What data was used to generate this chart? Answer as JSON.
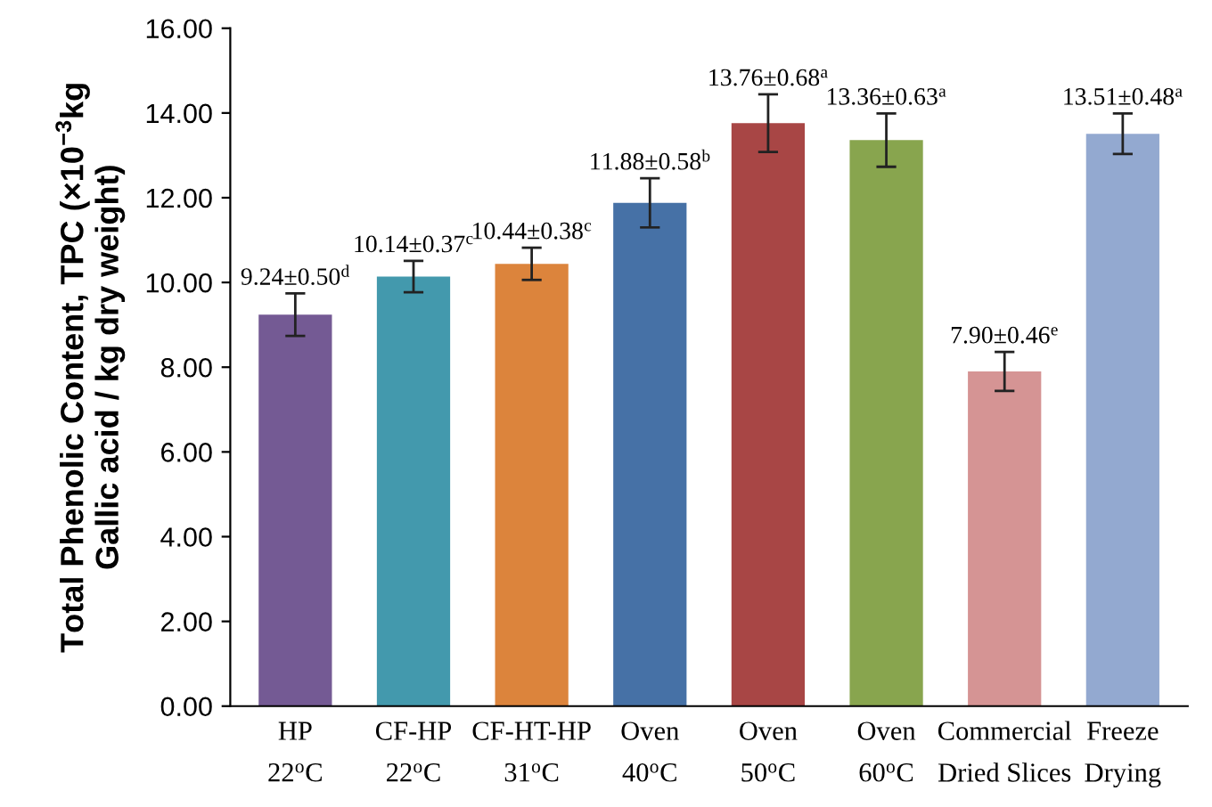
{
  "chart_data": {
    "type": "bar",
    "ylabel": "Total Phenolic Content, TPC (×10$^{−3}$kg\nGallic acid / kg dry weight)",
    "categories": [
      "HP\n22$^{o}$C",
      "CF-HP\n22$^{o}$C",
      "CF-HT-HP\n31$^{o}$C",
      "Oven\n40$^{o}$C",
      "Oven\n50$^{o}$C",
      "Oven\n60$^{o}$C",
      "Commercial\nDried Slices",
      "Freeze\nDrying"
    ],
    "values": [
      9.24,
      10.14,
      10.44,
      11.88,
      13.76,
      13.36,
      7.9,
      13.51
    ],
    "errors": [
      0.5,
      0.37,
      0.38,
      0.58,
      0.68,
      0.63,
      0.46,
      0.48
    ],
    "colors": [
      "#745a94",
      "#4399ad",
      "#dc843c",
      "#4671a6",
      "#a84645",
      "#88a54e",
      "#d59494",
      "#93a9d0"
    ],
    "value_labels": [
      "9.24±0.50$^{d}$",
      "10.14±0.37$^{c}$",
      "10.44±0.38$^{c}$",
      "11.88±0.58$^{b}$",
      "13.76±0.68$^{a}$",
      "13.36±0.63$^{a}$",
      "7.90±0.46$^{e}$",
      "13.51±0.48$^{a}$"
    ],
    "ylim": [
      0,
      16
    ],
    "yticks": [
      {
        "value": 0,
        "label": "0.00"
      },
      {
        "value": 2,
        "label": "2.00"
      },
      {
        "value": 4,
        "label": "4.00"
      },
      {
        "value": 6,
        "label": "6.00"
      },
      {
        "value": 8,
        "label": "8.00"
      },
      {
        "value": 10,
        "label": "10.00"
      },
      {
        "value": 12,
        "label": "12.00"
      },
      {
        "value": 14,
        "label": "14.00"
      },
      {
        "value": 16,
        "label": "16.00"
      }
    ],
    "grid": false,
    "legend": false
  }
}
